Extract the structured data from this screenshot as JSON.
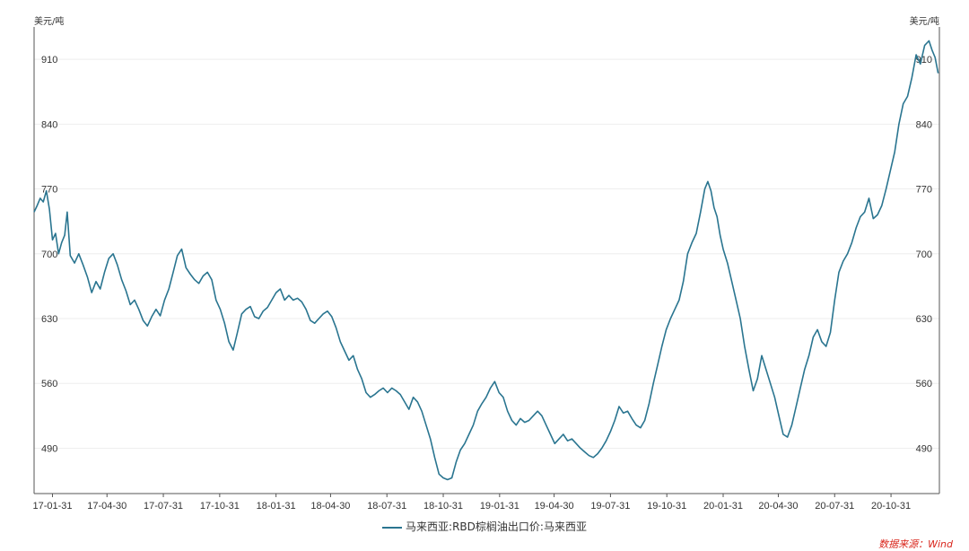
{
  "chart_data": {
    "type": "line",
    "yunit_left": "美元/吨",
    "yunit_right": "美元/吨",
    "ylim": [
      441,
      945
    ],
    "yticks": [
      490,
      560,
      630,
      700,
      770,
      840,
      910
    ],
    "xlim": [
      "2017-01-01",
      "2021-01-18"
    ],
    "xticks": [
      {
        "date": "2017-01-31",
        "label": "17-01-31"
      },
      {
        "date": "2017-04-30",
        "label": "17-04-30"
      },
      {
        "date": "2017-07-31",
        "label": "17-07-31"
      },
      {
        "date": "2017-10-31",
        "label": "17-10-31"
      },
      {
        "date": "2018-01-31",
        "label": "18-01-31"
      },
      {
        "date": "2018-04-30",
        "label": "18-04-30"
      },
      {
        "date": "2018-07-31",
        "label": "18-07-31"
      },
      {
        "date": "2018-10-31",
        "label": "18-10-31"
      },
      {
        "date": "2019-01-31",
        "label": "19-01-31"
      },
      {
        "date": "2019-04-30",
        "label": "19-04-30"
      },
      {
        "date": "2019-07-31",
        "label": "19-07-31"
      },
      {
        "date": "2019-10-31",
        "label": "19-10-31"
      },
      {
        "date": "2020-01-31",
        "label": "20-01-31"
      },
      {
        "date": "2020-04-30",
        "label": "20-04-30"
      },
      {
        "date": "2020-07-31",
        "label": "20-07-31"
      },
      {
        "date": "2020-10-31",
        "label": "20-10-31"
      }
    ],
    "grid": true,
    "legend_position": "bottom",
    "series": [
      {
        "name": "马来西亚:RBD棕榈油出口价:马来西亚",
        "color": "#2a7590",
        "points": [
          [
            "2017-01-01",
            745
          ],
          [
            "2017-01-06",
            752
          ],
          [
            "2017-01-11",
            760
          ],
          [
            "2017-01-16",
            756
          ],
          [
            "2017-01-21",
            768
          ],
          [
            "2017-01-26",
            748
          ],
          [
            "2017-01-31",
            715
          ],
          [
            "2017-02-05",
            722
          ],
          [
            "2017-02-10",
            700
          ],
          [
            "2017-02-15",
            712
          ],
          [
            "2017-02-20",
            720
          ],
          [
            "2017-02-24",
            745
          ],
          [
            "2017-03-01",
            698
          ],
          [
            "2017-03-08",
            690
          ],
          [
            "2017-03-15",
            700
          ],
          [
            "2017-03-22",
            688
          ],
          [
            "2017-03-29",
            675
          ],
          [
            "2017-04-05",
            658
          ],
          [
            "2017-04-12",
            670
          ],
          [
            "2017-04-19",
            662
          ],
          [
            "2017-04-26",
            680
          ],
          [
            "2017-05-03",
            695
          ],
          [
            "2017-05-10",
            700
          ],
          [
            "2017-05-17",
            688
          ],
          [
            "2017-05-24",
            672
          ],
          [
            "2017-05-31",
            660
          ],
          [
            "2017-06-07",
            645
          ],
          [
            "2017-06-14",
            650
          ],
          [
            "2017-06-21",
            640
          ],
          [
            "2017-06-28",
            628
          ],
          [
            "2017-07-05",
            622
          ],
          [
            "2017-07-12",
            632
          ],
          [
            "2017-07-19",
            640
          ],
          [
            "2017-07-26",
            633
          ],
          [
            "2017-08-02",
            650
          ],
          [
            "2017-08-09",
            662
          ],
          [
            "2017-08-16",
            680
          ],
          [
            "2017-08-23",
            698
          ],
          [
            "2017-08-30",
            705
          ],
          [
            "2017-09-06",
            685
          ],
          [
            "2017-09-13",
            678
          ],
          [
            "2017-09-20",
            672
          ],
          [
            "2017-09-27",
            668
          ],
          [
            "2017-10-04",
            676
          ],
          [
            "2017-10-11",
            680
          ],
          [
            "2017-10-18",
            672
          ],
          [
            "2017-10-25",
            650
          ],
          [
            "2017-11-01",
            640
          ],
          [
            "2017-11-08",
            625
          ],
          [
            "2017-11-15",
            605
          ],
          [
            "2017-11-22",
            596
          ],
          [
            "2017-11-29",
            615
          ],
          [
            "2017-12-06",
            635
          ],
          [
            "2017-12-13",
            640
          ],
          [
            "2017-12-20",
            643
          ],
          [
            "2017-12-27",
            632
          ],
          [
            "2018-01-03",
            630
          ],
          [
            "2018-01-10",
            638
          ],
          [
            "2018-01-17",
            642
          ],
          [
            "2018-01-24",
            650
          ],
          [
            "2018-01-31",
            658
          ],
          [
            "2018-02-07",
            662
          ],
          [
            "2018-02-14",
            650
          ],
          [
            "2018-02-21",
            655
          ],
          [
            "2018-02-28",
            650
          ],
          [
            "2018-03-07",
            652
          ],
          [
            "2018-03-14",
            648
          ],
          [
            "2018-03-21",
            640
          ],
          [
            "2018-03-28",
            628
          ],
          [
            "2018-04-04",
            625
          ],
          [
            "2018-04-11",
            630
          ],
          [
            "2018-04-18",
            635
          ],
          [
            "2018-04-25",
            638
          ],
          [
            "2018-05-02",
            632
          ],
          [
            "2018-05-09",
            620
          ],
          [
            "2018-05-16",
            605
          ],
          [
            "2018-05-23",
            595
          ],
          [
            "2018-05-30",
            585
          ],
          [
            "2018-06-06",
            590
          ],
          [
            "2018-06-13",
            575
          ],
          [
            "2018-06-20",
            565
          ],
          [
            "2018-06-27",
            550
          ],
          [
            "2018-07-04",
            545
          ],
          [
            "2018-07-11",
            548
          ],
          [
            "2018-07-18",
            552
          ],
          [
            "2018-07-25",
            555
          ],
          [
            "2018-08-01",
            550
          ],
          [
            "2018-08-08",
            555
          ],
          [
            "2018-08-15",
            552
          ],
          [
            "2018-08-22",
            548
          ],
          [
            "2018-08-29",
            540
          ],
          [
            "2018-09-05",
            532
          ],
          [
            "2018-09-12",
            545
          ],
          [
            "2018-09-19",
            540
          ],
          [
            "2018-09-26",
            530
          ],
          [
            "2018-10-03",
            515
          ],
          [
            "2018-10-10",
            500
          ],
          [
            "2018-10-17",
            480
          ],
          [
            "2018-10-24",
            462
          ],
          [
            "2018-10-31",
            458
          ],
          [
            "2018-11-07",
            456
          ],
          [
            "2018-11-14",
            458
          ],
          [
            "2018-11-21",
            475
          ],
          [
            "2018-11-28",
            488
          ],
          [
            "2018-12-05",
            495
          ],
          [
            "2018-12-12",
            505
          ],
          [
            "2018-12-19",
            515
          ],
          [
            "2018-12-26",
            530
          ],
          [
            "2019-01-02",
            538
          ],
          [
            "2019-01-09",
            545
          ],
          [
            "2019-01-16",
            555
          ],
          [
            "2019-01-23",
            562
          ],
          [
            "2019-01-30",
            550
          ],
          [
            "2019-02-06",
            545
          ],
          [
            "2019-02-13",
            530
          ],
          [
            "2019-02-20",
            520
          ],
          [
            "2019-02-27",
            515
          ],
          [
            "2019-03-06",
            522
          ],
          [
            "2019-03-13",
            518
          ],
          [
            "2019-03-20",
            520
          ],
          [
            "2019-03-27",
            525
          ],
          [
            "2019-04-03",
            530
          ],
          [
            "2019-04-10",
            525
          ],
          [
            "2019-04-17",
            515
          ],
          [
            "2019-04-24",
            505
          ],
          [
            "2019-05-01",
            495
          ],
          [
            "2019-05-08",
            500
          ],
          [
            "2019-05-15",
            505
          ],
          [
            "2019-05-22",
            498
          ],
          [
            "2019-05-29",
            500
          ],
          [
            "2019-06-05",
            495
          ],
          [
            "2019-06-12",
            490
          ],
          [
            "2019-06-19",
            486
          ],
          [
            "2019-06-26",
            482
          ],
          [
            "2019-07-03",
            480
          ],
          [
            "2019-07-10",
            484
          ],
          [
            "2019-07-17",
            490
          ],
          [
            "2019-07-24",
            498
          ],
          [
            "2019-07-31",
            508
          ],
          [
            "2019-08-07",
            520
          ],
          [
            "2019-08-14",
            535
          ],
          [
            "2019-08-21",
            528
          ],
          [
            "2019-08-28",
            530
          ],
          [
            "2019-09-04",
            522
          ],
          [
            "2019-09-11",
            515
          ],
          [
            "2019-09-18",
            512
          ],
          [
            "2019-09-25",
            520
          ],
          [
            "2019-10-02",
            538
          ],
          [
            "2019-10-09",
            560
          ],
          [
            "2019-10-16",
            580
          ],
          [
            "2019-10-23",
            600
          ],
          [
            "2019-10-30",
            618
          ],
          [
            "2019-11-06",
            630
          ],
          [
            "2019-11-13",
            640
          ],
          [
            "2019-11-20",
            650
          ],
          [
            "2019-11-27",
            670
          ],
          [
            "2019-12-04",
            700
          ],
          [
            "2019-12-11",
            712
          ],
          [
            "2019-12-18",
            722
          ],
          [
            "2019-12-25",
            745
          ],
          [
            "2020-01-01",
            770
          ],
          [
            "2020-01-06",
            778
          ],
          [
            "2020-01-11",
            768
          ],
          [
            "2020-01-16",
            750
          ],
          [
            "2020-01-21",
            740
          ],
          [
            "2020-01-26",
            720
          ],
          [
            "2020-01-31",
            705
          ],
          [
            "2020-02-07",
            690
          ],
          [
            "2020-02-14",
            670
          ],
          [
            "2020-02-21",
            650
          ],
          [
            "2020-02-28",
            630
          ],
          [
            "2020-03-06",
            600
          ],
          [
            "2020-03-13",
            575
          ],
          [
            "2020-03-20",
            552
          ],
          [
            "2020-03-27",
            565
          ],
          [
            "2020-04-03",
            590
          ],
          [
            "2020-04-10",
            575
          ],
          [
            "2020-04-17",
            560
          ],
          [
            "2020-04-24",
            545
          ],
          [
            "2020-05-01",
            525
          ],
          [
            "2020-05-08",
            505
          ],
          [
            "2020-05-15",
            502
          ],
          [
            "2020-05-22",
            515
          ],
          [
            "2020-05-29",
            535
          ],
          [
            "2020-06-05",
            555
          ],
          [
            "2020-06-12",
            575
          ],
          [
            "2020-06-19",
            590
          ],
          [
            "2020-06-26",
            610
          ],
          [
            "2020-07-03",
            618
          ],
          [
            "2020-07-10",
            605
          ],
          [
            "2020-07-17",
            600
          ],
          [
            "2020-07-24",
            615
          ],
          [
            "2020-07-31",
            650
          ],
          [
            "2020-08-07",
            680
          ],
          [
            "2020-08-14",
            692
          ],
          [
            "2020-08-21",
            700
          ],
          [
            "2020-08-28",
            712
          ],
          [
            "2020-09-04",
            728
          ],
          [
            "2020-09-11",
            740
          ],
          [
            "2020-09-18",
            745
          ],
          [
            "2020-09-25",
            760
          ],
          [
            "2020-10-02",
            738
          ],
          [
            "2020-10-09",
            742
          ],
          [
            "2020-10-16",
            752
          ],
          [
            "2020-10-23",
            770
          ],
          [
            "2020-10-30",
            790
          ],
          [
            "2020-11-06",
            810
          ],
          [
            "2020-11-13",
            840
          ],
          [
            "2020-11-20",
            862
          ],
          [
            "2020-11-27",
            870
          ],
          [
            "2020-12-04",
            890
          ],
          [
            "2020-12-11",
            915
          ],
          [
            "2020-12-18",
            905
          ],
          [
            "2020-12-25",
            925
          ],
          [
            "2021-01-01",
            930
          ],
          [
            "2021-01-06",
            920
          ],
          [
            "2021-01-11",
            912
          ],
          [
            "2021-01-16",
            895
          ]
        ]
      }
    ]
  },
  "legend": {
    "label": "马来西亚:RBD棕榈油出口价:马来西亚"
  },
  "source": "数据来源：Wind"
}
